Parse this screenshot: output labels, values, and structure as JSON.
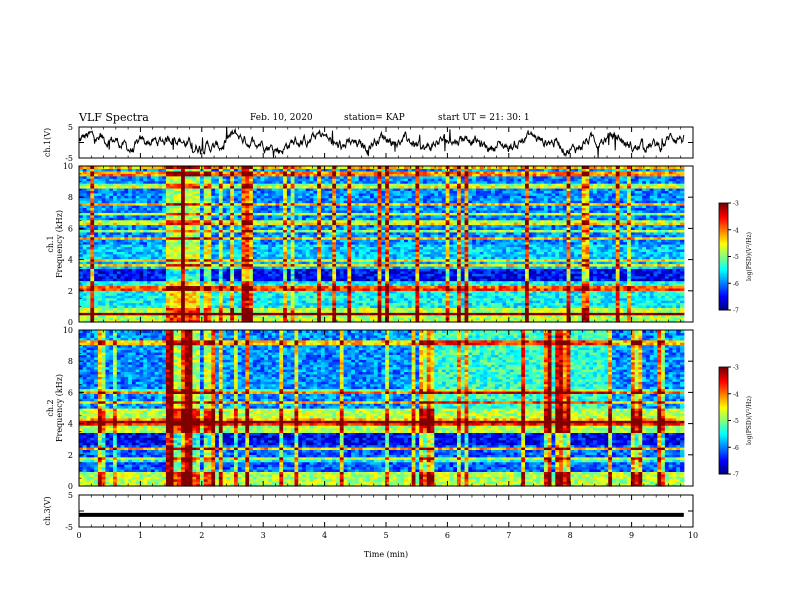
{
  "header": {
    "title": "VLF Spectra",
    "date": "Feb. 10, 2020",
    "station": "station= KAP",
    "start": "start  UT  =   21: 30: 1"
  },
  "chart_data": [
    {
      "type": "line",
      "panel": "ch1-waveform",
      "ylabel": "ch.1(V)",
      "yticks": [
        "5",
        "-5"
      ],
      "ylim": [
        -5,
        5
      ],
      "xlim": [
        0,
        10
      ],
      "note": "noisy voltage trace across full time range"
    },
    {
      "type": "heatmap",
      "panel": "ch1-spectrogram",
      "ylabel_line1": "ch.1",
      "ylabel_line2": "Frequency (kHz)",
      "yticks": [
        "0",
        "2",
        "4",
        "6",
        "8",
        "10"
      ],
      "ylim": [
        0,
        10
      ],
      "xlim": [
        0,
        10
      ],
      "colorbar": {
        "label": "log(PSD)(V²/Hz)",
        "ticks": [
          "-3",
          "-4",
          "-5",
          "-6",
          "-7"
        ],
        "range": [
          -7,
          -3
        ]
      }
    },
    {
      "type": "heatmap",
      "panel": "ch2-spectrogram",
      "ylabel_line1": "ch.2",
      "ylabel_line2": "Frequency (kHz)",
      "yticks": [
        "0",
        "2",
        "4",
        "6",
        "8",
        "10"
      ],
      "ylim": [
        0,
        10
      ],
      "xlim": [
        0,
        10
      ],
      "colorbar": {
        "label": "log(PSD)(V²/Hz)",
        "ticks": [
          "-3",
          "-4",
          "-5",
          "-6",
          "-7"
        ],
        "range": [
          -7,
          -3
        ]
      }
    },
    {
      "type": "line",
      "panel": "ch3-waveform",
      "ylabel": "ch.3(V)",
      "yticks": [
        "5",
        "-5"
      ],
      "ylim": [
        -5,
        5
      ],
      "xlim": [
        0,
        10
      ],
      "values_constant": -1.2,
      "xlabel": "Time (min)",
      "xticks": [
        "0",
        "1",
        "2",
        "3",
        "4",
        "5",
        "6",
        "7",
        "8",
        "9",
        "10"
      ]
    }
  ]
}
